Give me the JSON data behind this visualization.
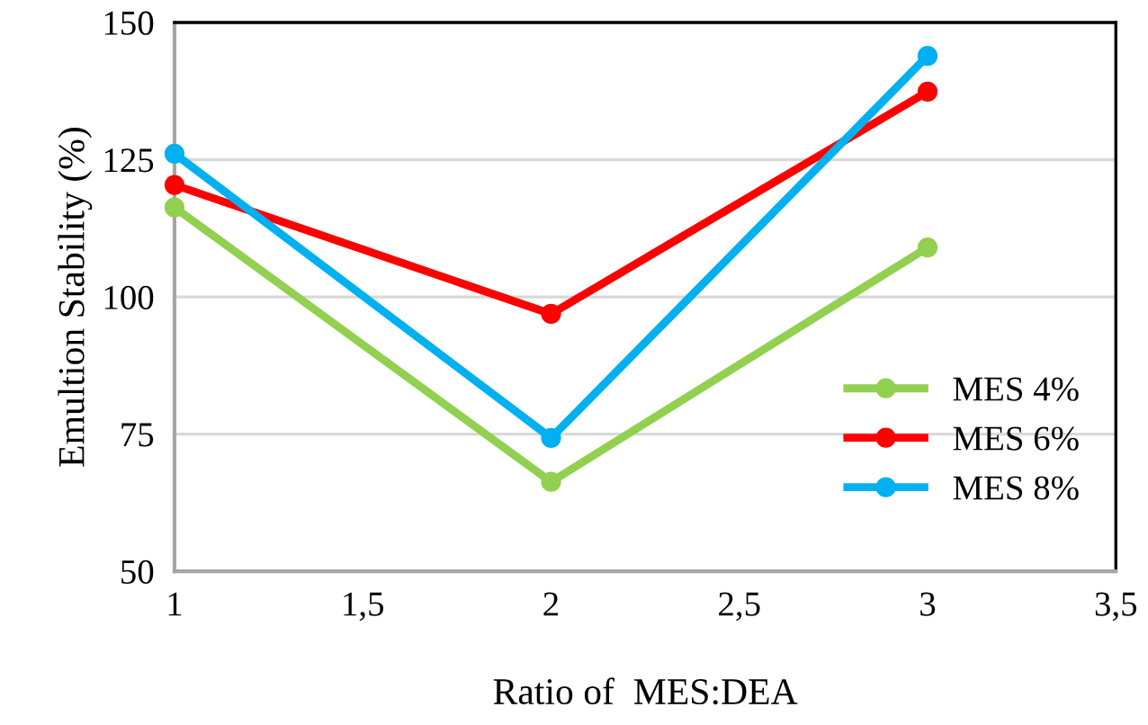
{
  "chart_data": {
    "type": "line",
    "xlabel": "Ratio of  MES:DEA",
    "ylabel": "Emultion Stability (%)",
    "x": [
      1,
      2,
      3
    ],
    "series": [
      {
        "name": "MES 4%",
        "color": "#92d050",
        "values": [
          116.3,
          66.3,
          109
        ]
      },
      {
        "name": "MES 6%",
        "color": "#ff0000",
        "values": [
          120.4,
          96.9,
          137.4
        ]
      },
      {
        "name": "MES 8%",
        "color": "#00b0f0",
        "values": [
          126.1,
          74.3,
          143.9
        ]
      }
    ],
    "xlim": [
      1,
      3.5
    ],
    "xticks": [
      1,
      {
        "value": 1.5,
        "label": "1,5"
      },
      2,
      {
        "value": 2.5,
        "label": "2,5"
      },
      3,
      {
        "value": 3.5,
        "label": "3,5"
      }
    ],
    "ylim": [
      50,
      150
    ],
    "yticks": [
      50,
      75,
      100,
      125,
      150
    ],
    "grid": "y",
    "legend": "bottom right",
    "marker": "circle",
    "line_style": "solid"
  }
}
